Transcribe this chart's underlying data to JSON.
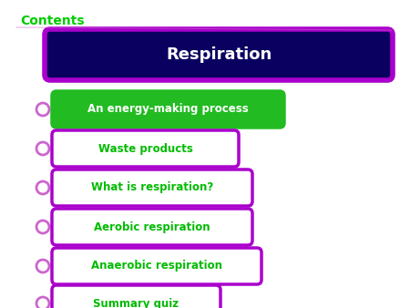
{
  "title": "Contents",
  "title_color": "#00cc00",
  "main_label": "Respiration",
  "main_label_color": "#ffffff",
  "main_box_fill": "#0a0060",
  "main_box_border": "#aa00cc",
  "items": [
    {
      "text": "An energy-making process",
      "fill": "#22bb22",
      "border": "#22bb22",
      "text_color": "#ffffff"
    },
    {
      "text": "Waste products",
      "fill": "#ffffff",
      "border": "#aa00cc",
      "text_color": "#00bb00"
    },
    {
      "text": "What is respiration?",
      "fill": "#ffffff",
      "border": "#aa00cc",
      "text_color": "#00bb00"
    },
    {
      "text": "Aerobic respiration",
      "fill": "#ffffff",
      "border": "#aa00cc",
      "text_color": "#00bb00"
    },
    {
      "text": "Anaerobic respiration",
      "fill": "#ffffff",
      "border": "#aa00cc",
      "text_color": "#00bb00"
    },
    {
      "text": "Summary quiz",
      "fill": "#ffffff",
      "border": "#aa00cc",
      "text_color": "#00bb00"
    }
  ],
  "bullet_color": "#cc66cc",
  "separator_color": "#cc66cc",
  "bg_color": "#ffffff",
  "fig_width": 4.5,
  "fig_height": 3.38,
  "dpi": 100
}
